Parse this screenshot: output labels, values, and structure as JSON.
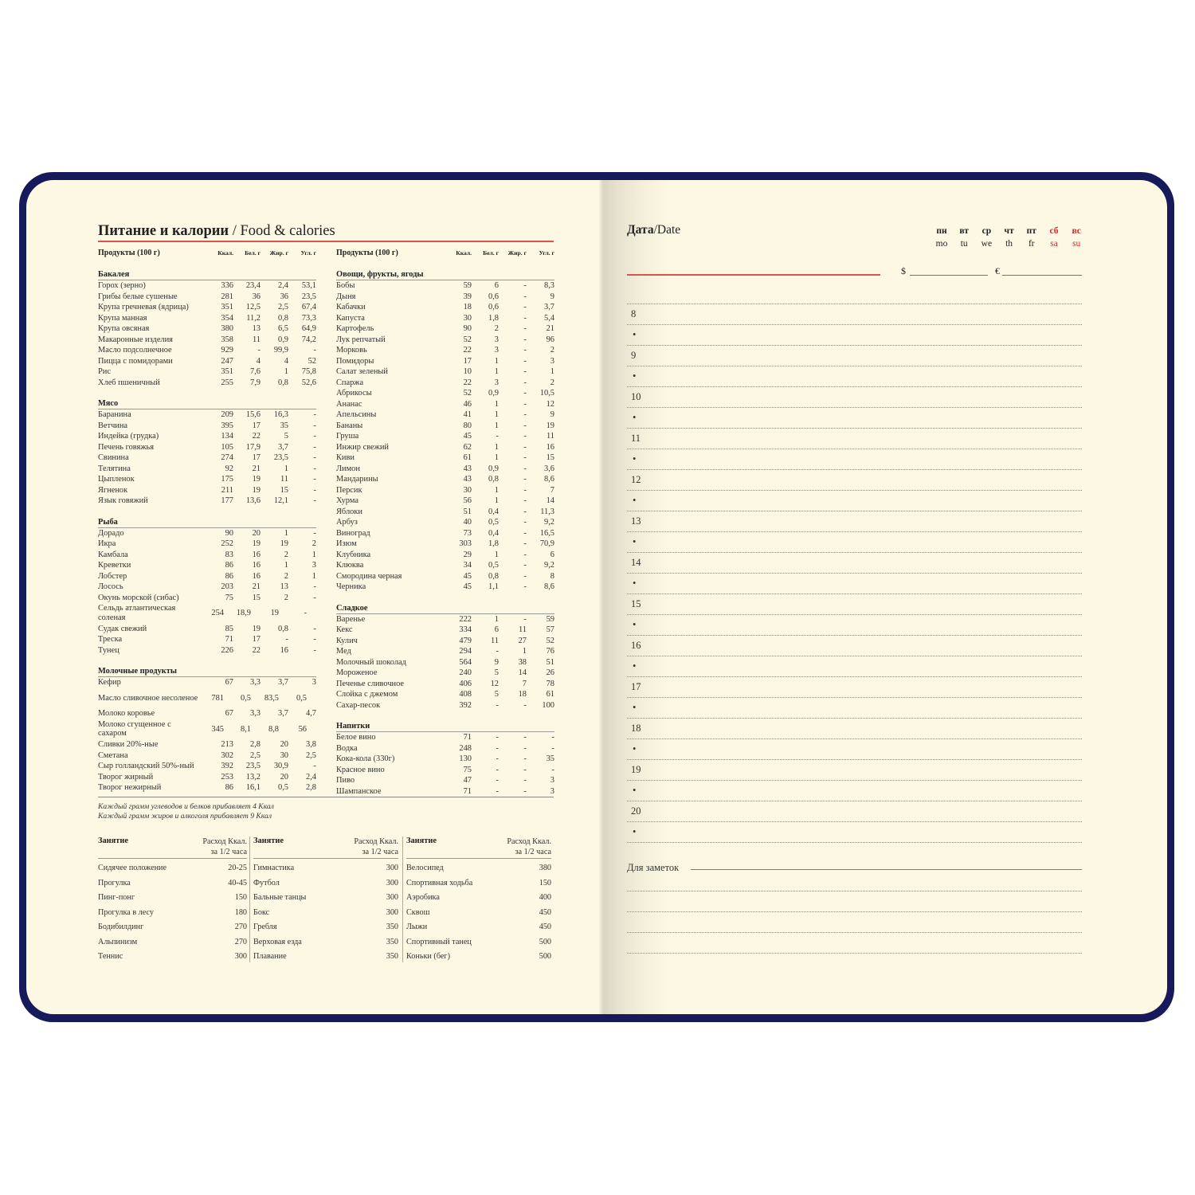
{
  "colors": {
    "cover": "#16195a",
    "paper": "#fcf8e3",
    "accent_red": "#d9534f",
    "weekend_red": "#d62a2a"
  },
  "left_page": {
    "title_ru": "Питание и калории",
    "title_sep": " / ",
    "title_en": "Food & calories",
    "header": {
      "product": "Продукты (100 г)",
      "kcal": "Ккал.",
      "protein": "Бел. г",
      "fat": "Жир. г",
      "carbs": "Угл. г"
    },
    "columns": [
      [
        {
          "section": "Бакалея",
          "rows": [
            [
              "Горох (зерно)",
              "336",
              "23,4",
              "2,4",
              "53,1"
            ],
            [
              "Грибы белые сушеные",
              "281",
              "36",
              "36",
              "23,5"
            ],
            [
              "Крупа гречневая (ядрица)",
              "351",
              "12,5",
              "2,5",
              "67,4"
            ],
            [
              "Крупа манная",
              "354",
              "11,2",
              "0,8",
              "73,3"
            ],
            [
              "Крупа овсяная",
              "380",
              "13",
              "6,5",
              "64,9"
            ],
            [
              "Макаронные изделия",
              "358",
              "11",
              "0,9",
              "74,2"
            ],
            [
              "Масло подсолнечное",
              "929",
              "-",
              "99,9",
              "-"
            ],
            [
              "Пицца с помидорами",
              "247",
              "4",
              "4",
              "52"
            ],
            [
              "Рис",
              "351",
              "7,6",
              "1",
              "75,8"
            ],
            [
              "Хлеб пшеничный",
              "255",
              "7,9",
              "0,8",
              "52,6"
            ]
          ]
        },
        {
          "section": "Мясо",
          "rows": [
            [
              "Баранина",
              "209",
              "15,6",
              "16,3",
              "-"
            ],
            [
              "Ветчина",
              "395",
              "17",
              "35",
              "-"
            ],
            [
              "Индейка (грудка)",
              "134",
              "22",
              "5",
              "-"
            ],
            [
              "Печень говяжья",
              "105",
              "17,9",
              "3,7",
              "-"
            ],
            [
              "Свинина",
              "274",
              "17",
              "23,5",
              "-"
            ],
            [
              "Телятина",
              "92",
              "21",
              "1",
              "-"
            ],
            [
              "Цыпленок",
              "175",
              "19",
              "11",
              "-"
            ],
            [
              "Ягненок",
              "211",
              "19",
              "15",
              "-"
            ],
            [
              "Язык говяжий",
              "177",
              "13,6",
              "12,1",
              "-"
            ]
          ]
        },
        {
          "section": "Рыба",
          "rows": [
            [
              "Дорадо",
              "90",
              "20",
              "1",
              "-"
            ],
            [
              "Икра",
              "252",
              "19",
              "19",
              "2"
            ],
            [
              "Камбала",
              "83",
              "16",
              "2",
              "1"
            ],
            [
              "Креветки",
              "86",
              "16",
              "1",
              "3"
            ],
            [
              "Лобстер",
              "86",
              "16",
              "2",
              "1"
            ],
            [
              "Лосось",
              "203",
              "21",
              "13",
              "-"
            ],
            [
              "Окунь морской (сибас)",
              "75",
              "15",
              "2",
              "-"
            ],
            [
              "Сельдь атлантическая соленая",
              "254",
              "18,9",
              "19",
              "-"
            ],
            [
              "Судак свежий",
              "85",
              "19",
              "0,8",
              "-"
            ],
            [
              "Треска",
              "71",
              "17",
              "-",
              "-"
            ],
            [
              "Тунец",
              "226",
              "22",
              "16",
              "-"
            ]
          ]
        },
        {
          "section": "Молочные продукты",
          "rows": [
            [
              "Кефир",
              "67",
              "3,3",
              "3,7",
              "3"
            ],
            [
              "Масло сливочное несоленое",
              "781",
              "0,5",
              "83,5",
              "0,5"
            ],
            [
              "Молоко коровье",
              "67",
              "3,3",
              "3,7",
              "4,7"
            ],
            [
              "Молоко сгущенное с сахаром",
              "345",
              "8,1",
              "8,8",
              "56"
            ],
            [
              "Сливки 20%-ные",
              "213",
              "2,8",
              "20",
              "3,8"
            ],
            [
              "Сметана",
              "302",
              "2,5",
              "30",
              "2,5"
            ],
            [
              "Сыр голландский 50%-ный",
              "392",
              "23,5",
              "30,9",
              "-"
            ],
            [
              "Творог жирный",
              "253",
              "13,2",
              "20",
              "2,4"
            ],
            [
              "Творог нежирный",
              "86",
              "16,1",
              "0,5",
              "2,8"
            ]
          ]
        }
      ],
      [
        {
          "section": "Овощи, фрукты, ягоды",
          "rows": [
            [
              "Бобы",
              "59",
              "6",
              "-",
              "8,3"
            ],
            [
              "Дыня",
              "39",
              "0,6",
              "-",
              "9"
            ],
            [
              "Кабачки",
              "18",
              "0,6",
              "-",
              "3,7"
            ],
            [
              "Капуста",
              "30",
              "1,8",
              "-",
              "5,4"
            ],
            [
              "Картофель",
              "90",
              "2",
              "-",
              "21"
            ],
            [
              "Лук репчатый",
              "52",
              "3",
              "-",
              "96"
            ],
            [
              "Морковь",
              "22",
              "3",
              "-",
              "2"
            ],
            [
              "Помидоры",
              "17",
              "1",
              "-",
              "3"
            ],
            [
              "Салат зеленый",
              "10",
              "1",
              "-",
              "1"
            ],
            [
              "Спаржа",
              "22",
              "3",
              "-",
              "2"
            ],
            [
              "Абрикосы",
              "52",
              "0,9",
              "-",
              "10,5"
            ],
            [
              "Ананас",
              "46",
              "1",
              "-",
              "12"
            ],
            [
              "Апельсины",
              "41",
              "1",
              "-",
              "9"
            ],
            [
              "Бананы",
              "80",
              "1",
              "-",
              "19"
            ],
            [
              "Груша",
              "45",
              "-",
              "-",
              "11"
            ],
            [
              "Инжир свежий",
              "62",
              "1",
              "-",
              "16"
            ],
            [
              "Киви",
              "61",
              "1",
              "-",
              "15"
            ],
            [
              "Лимон",
              "43",
              "0,9",
              "-",
              "3,6"
            ],
            [
              "Мандарины",
              "43",
              "0,8",
              "-",
              "8,6"
            ],
            [
              "Персик",
              "30",
              "1",
              "-",
              "7"
            ],
            [
              "Хурма",
              "56",
              "1",
              "-",
              "14"
            ],
            [
              "Яблоки",
              "51",
              "0,4",
              "-",
              "11,3"
            ],
            [
              "Арбуз",
              "40",
              "0,5",
              "-",
              "9,2"
            ],
            [
              "Виноград",
              "73",
              "0,4",
              "-",
              "16,5"
            ],
            [
              "Изюм",
              "303",
              "1,8",
              "-",
              "70,9"
            ],
            [
              "Клубника",
              "29",
              "1",
              "-",
              "6"
            ],
            [
              "Клюква",
              "34",
              "0,5",
              "-",
              "9,2"
            ],
            [
              "Смородина черная",
              "45",
              "0,8",
              "-",
              "8"
            ],
            [
              "Черника",
              "45",
              "1,1",
              "-",
              "8,6"
            ]
          ]
        },
        {
          "section": "Сладкое",
          "rows": [
            [
              "Варенье",
              "222",
              "1",
              "-",
              "59"
            ],
            [
              "Кекс",
              "334",
              "6",
              "11",
              "57"
            ],
            [
              "Кулич",
              "479",
              "11",
              "27",
              "52"
            ],
            [
              "Мед",
              "294",
              "-",
              "1",
              "76"
            ],
            [
              "Молочный шоколад",
              "564",
              "9",
              "38",
              "51"
            ],
            [
              "Мороженое",
              "240",
              "5",
              "14",
              "26"
            ],
            [
              "Печенье сливочное",
              "406",
              "12",
              "7",
              "78"
            ],
            [
              "Слойка с джемом",
              "408",
              "5",
              "18",
              "61"
            ],
            [
              "Сахар-песок",
              "392",
              "-",
              "-",
              "100"
            ]
          ]
        },
        {
          "section": "Напитки",
          "rows": [
            [
              "Белое вино",
              "71",
              "-",
              "-",
              "-"
            ],
            [
              "Водка",
              "248",
              "-",
              "-",
              "-"
            ],
            [
              "Кока-кола (330г)",
              "130",
              "-",
              "-",
              "35"
            ],
            [
              "Красное вино",
              "75",
              "-",
              "-",
              "-"
            ],
            [
              "Пиво",
              "47",
              "-",
              "-",
              "3"
            ],
            [
              "Шампанское",
              "71",
              "-",
              "-",
              "3"
            ]
          ]
        }
      ]
    ],
    "footnotes": [
      "Каждый грамм углеводов и белков прибавляет 4 Ккал",
      "Каждый грамм жиров и алкоголя прибавляет 9 Ккал"
    ],
    "activity_header": {
      "activity": "Занятие",
      "burn_line1": "Расход Ккал.",
      "burn_line2": "за 1/2 часа"
    },
    "activities": [
      [
        [
          "Сидячее положение",
          "20-25"
        ],
        [
          "Прогулка",
          "40-45"
        ],
        [
          "Пинг-понг",
          "150"
        ],
        [
          "Прогулка в лесу",
          "180"
        ],
        [
          "Бодибилдинг",
          "270"
        ],
        [
          "Альпинизм",
          "270"
        ],
        [
          "Теннис",
          "300"
        ]
      ],
      [
        [
          "Гимнастика",
          "300"
        ],
        [
          "Футбол",
          "300"
        ],
        [
          "Бальные танцы",
          "300"
        ],
        [
          "Бокс",
          "300"
        ],
        [
          "Гребля",
          "350"
        ],
        [
          "Верховая езда",
          "350"
        ],
        [
          "Плавание",
          "350"
        ]
      ],
      [
        [
          "Велосипед",
          "380"
        ],
        [
          "Спортивная ходьба",
          "150"
        ],
        [
          "Аэробика",
          "400"
        ],
        [
          "Сквош",
          "450"
        ],
        [
          "Лыжи",
          "450"
        ],
        [
          "Спортивный танец",
          "500"
        ],
        [
          "Коньки (бег)",
          "500"
        ]
      ]
    ]
  },
  "right_page": {
    "date_ru": "Дата",
    "date_sep": "/",
    "date_en": "Date",
    "weekdays": [
      {
        "ru": "пн",
        "en": "mo"
      },
      {
        "ru": "вт",
        "en": "tu"
      },
      {
        "ru": "ср",
        "en": "we"
      },
      {
        "ru": "чт",
        "en": "th"
      },
      {
        "ru": "пт",
        "en": "fr"
      },
      {
        "ru": "сб",
        "en": "sa",
        "weekend": true
      },
      {
        "ru": "вс",
        "en": "su",
        "weekend": true
      }
    ],
    "currency_usd": "$",
    "currency_eur": "€",
    "hours": [
      "8",
      "9",
      "10",
      "11",
      "12",
      "13",
      "14",
      "15",
      "16",
      "17",
      "18",
      "19",
      "20"
    ],
    "bullet": "•",
    "notes_label": "Для заметок"
  }
}
